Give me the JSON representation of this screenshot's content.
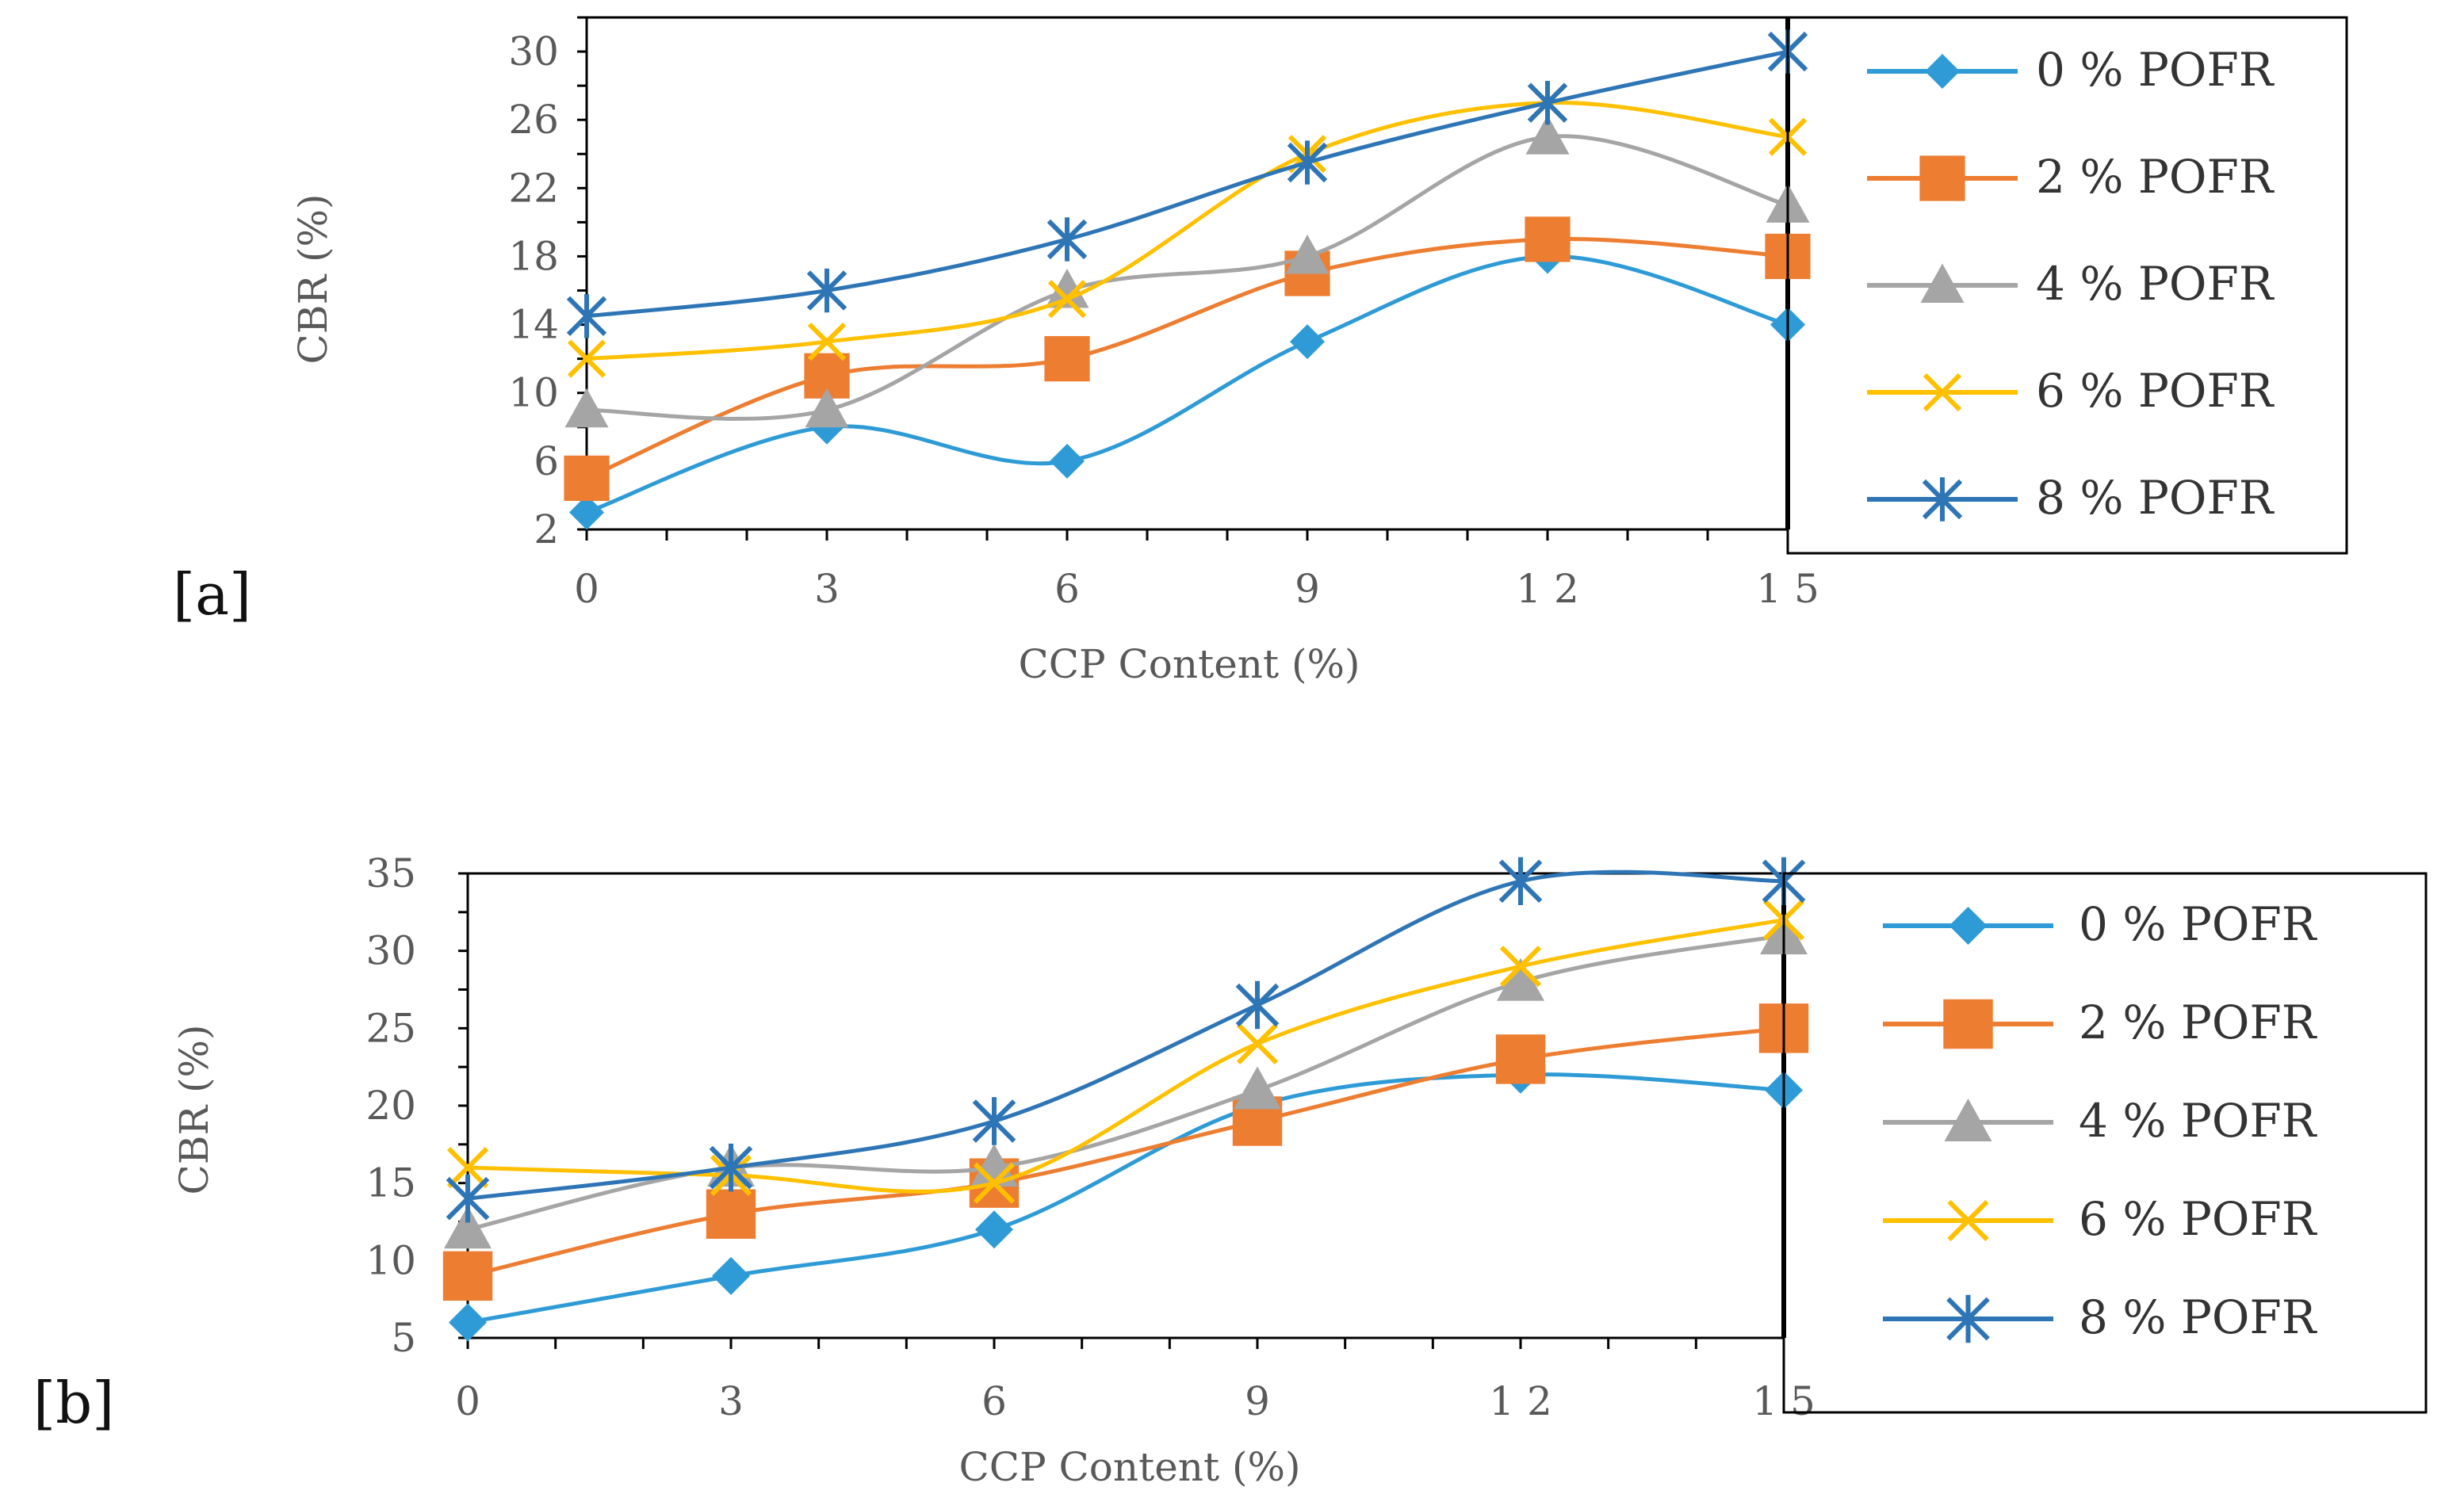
{
  "chart_data": [
    {
      "type": "line",
      "panel_label": "[a]",
      "xlabel": "CCP Content (%)",
      "ylabel": "CBR (%)",
      "x": [
        0,
        3,
        6,
        9,
        12,
        15
      ],
      "x_tick_labels": [
        "0",
        "3",
        "6",
        "9",
        "1 2",
        "1 5"
      ],
      "y_ticks": [
        2,
        6,
        10,
        14,
        18,
        22,
        26,
        30
      ],
      "ylim": [
        2,
        32
      ],
      "xlim": [
        0,
        15
      ],
      "legend_position": "right",
      "series": [
        {
          "name": "0 % POFR",
          "color": "#2E9BD6",
          "marker": "diamond",
          "values": [
            3,
            8,
            6,
            13,
            18,
            14
          ]
        },
        {
          "name": "2 % POFR",
          "color": "#ED7D31",
          "marker": "square",
          "values": [
            5,
            11,
            12,
            17,
            19,
            18
          ]
        },
        {
          "name": "4 % POFR",
          "color": "#A5A5A5",
          "marker": "triangle",
          "values": [
            9,
            9,
            16,
            18,
            25,
            21
          ]
        },
        {
          "name": "6 % POFR",
          "color": "#FFC000",
          "marker": "x",
          "values": [
            12,
            13,
            15.5,
            24,
            27,
            25
          ]
        },
        {
          "name": "8 % POFR",
          "color": "#2E75B6",
          "marker": "asterisk",
          "values": [
            14.5,
            16,
            19,
            23.5,
            27,
            30
          ]
        }
      ]
    },
    {
      "type": "line",
      "panel_label": "[b]",
      "xlabel": "CCP Content (%)",
      "ylabel": "CBR (%)",
      "x": [
        0,
        3,
        6,
        9,
        12,
        15
      ],
      "x_tick_labels": [
        "0",
        "3",
        "6",
        "9",
        "1 2",
        "1 5"
      ],
      "y_ticks": [
        5,
        10,
        15,
        20,
        25,
        30,
        35
      ],
      "ylim": [
        5,
        35
      ],
      "xlim": [
        0,
        15
      ],
      "legend_position": "right",
      "series": [
        {
          "name": "0 % POFR",
          "color": "#2E9BD6",
          "marker": "diamond",
          "values": [
            6,
            9,
            12,
            20,
            22,
            21
          ]
        },
        {
          "name": "2 % POFR",
          "color": "#ED7D31",
          "marker": "square",
          "values": [
            9,
            13,
            15,
            19,
            23,
            25
          ]
        },
        {
          "name": "4 % POFR",
          "color": "#A5A5A5",
          "marker": "triangle",
          "values": [
            12,
            16,
            16,
            21,
            28,
            31
          ]
        },
        {
          "name": "6 % POFR",
          "color": "#FFC000",
          "marker": "x",
          "values": [
            16,
            15.5,
            15,
            24,
            29,
            32
          ]
        },
        {
          "name": "8 % POFR",
          "color": "#2E75B6",
          "marker": "asterisk",
          "values": [
            14,
            16,
            19,
            26.5,
            34.5,
            34.5
          ]
        }
      ]
    }
  ]
}
